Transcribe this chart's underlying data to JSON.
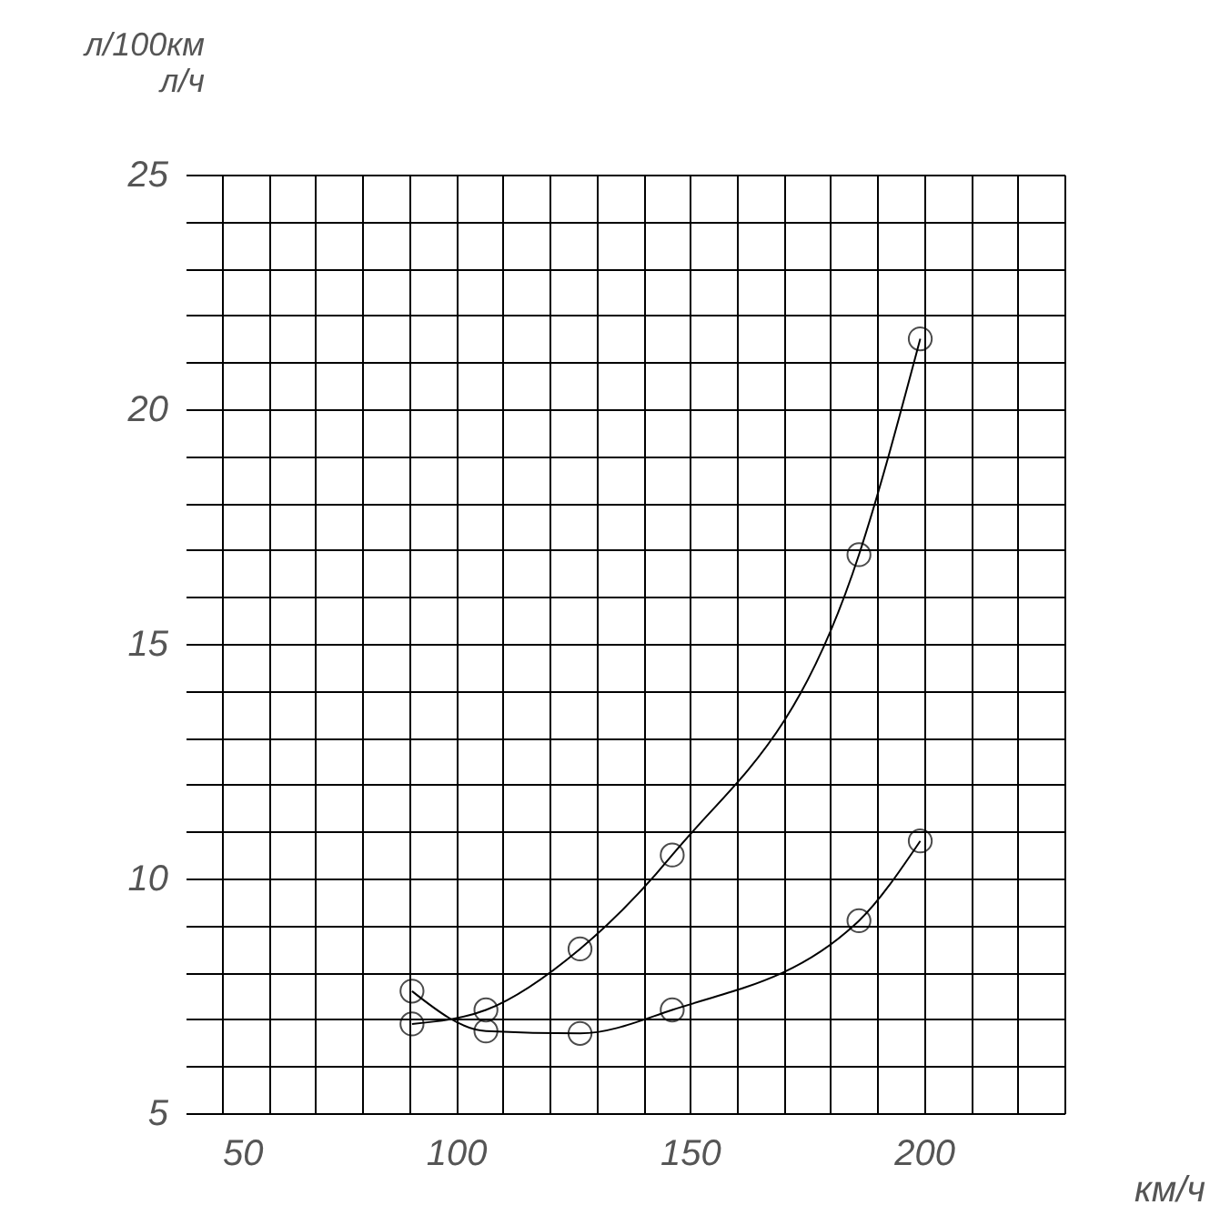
{
  "chart_data": {
    "type": "line",
    "xlabel": "км/ч",
    "ylabel": "л/100км\nл/ч",
    "x": [
      90.6,
      106.4,
      126.5,
      146.2,
      186.1,
      199.2
    ],
    "series": [
      {
        "color": "#000000",
        "values": [
          6.9,
          7.2,
          8.5,
          10.5,
          16.9,
          21.5
        ]
      },
      {
        "color": "#000000",
        "values": [
          7.6,
          6.75,
          6.7,
          7.2,
          9.1,
          10.8
        ]
      }
    ],
    "xlim": [
      50,
      230
    ],
    "ylim": [
      5,
      25
    ],
    "xticks": [
      50,
      {
        "value": 60,
        "label": null
      },
      {
        "value": 70,
        "label": null
      },
      {
        "value": 80,
        "label": null
      },
      {
        "value": 90,
        "label": null
      },
      100,
      {
        "value": 110,
        "label": null
      },
      {
        "value": 120,
        "label": null
      },
      {
        "value": 130,
        "label": null
      },
      {
        "value": 140,
        "label": null
      },
      150,
      {
        "value": 160,
        "label": null
      },
      {
        "value": 170,
        "label": null
      },
      {
        "value": 180,
        "label": null
      },
      {
        "value": 190,
        "label": null
      },
      200,
      {
        "value": 210,
        "label": null
      },
      {
        "value": 220,
        "label": null
      },
      {
        "value": 230,
        "label": null
      }
    ],
    "yticks": [
      5,
      {
        "value": 6,
        "label": null
      },
      {
        "value": 7,
        "label": null
      },
      {
        "value": 8,
        "label": null
      },
      {
        "value": 9,
        "label": null
      },
      10,
      {
        "value": 11,
        "label": null
      },
      {
        "value": 12,
        "label": null
      },
      {
        "value": 13,
        "label": null
      },
      {
        "value": 14,
        "label": null
      },
      15,
      {
        "value": 16,
        "label": null
      },
      {
        "value": 17,
        "label": null
      },
      {
        "value": 18,
        "label": null
      },
      {
        "value": 19,
        "label": null
      },
      20,
      {
        "value": 21,
        "label": null
      },
      {
        "value": 22,
        "label": null
      },
      {
        "value": 23,
        "label": null
      },
      {
        "value": 24,
        "label": null
      },
      25
    ],
    "grid": true,
    "marker": "circle",
    "line_style": "solid",
    "legend": false
  }
}
